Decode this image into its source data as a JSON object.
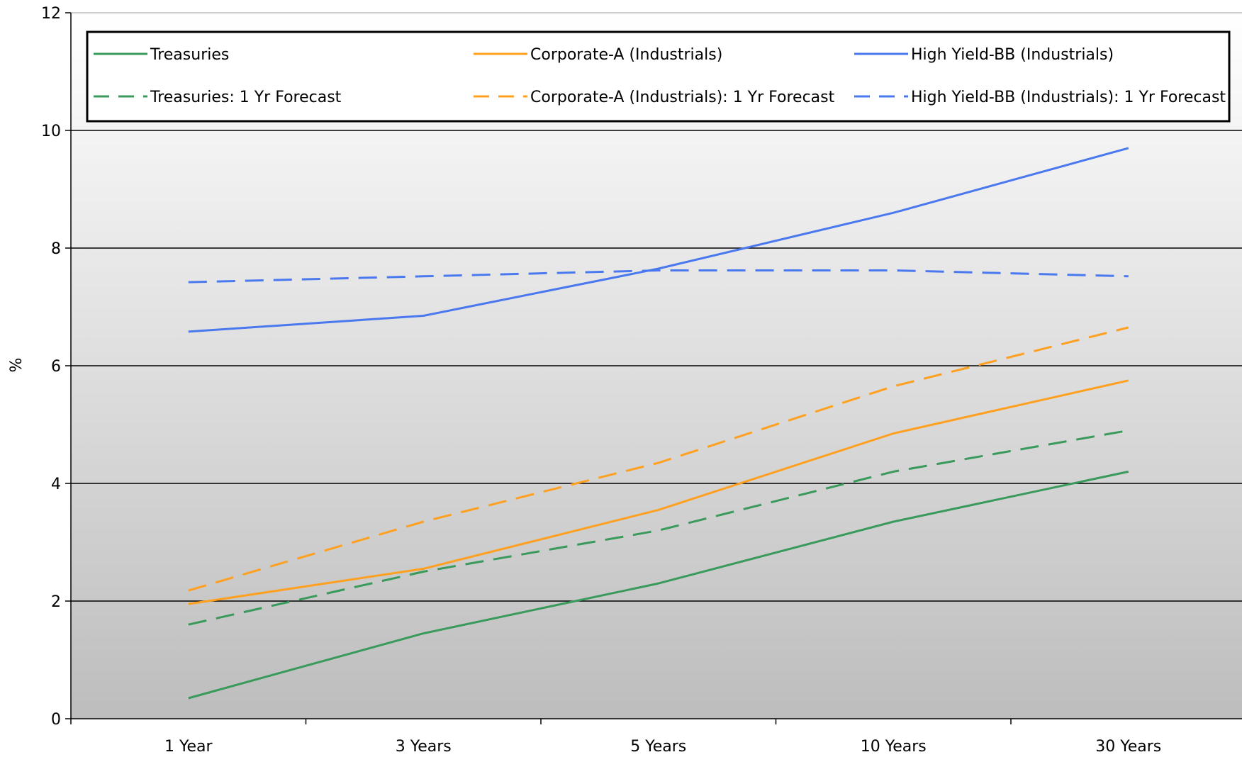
{
  "chart_data": {
    "type": "line",
    "title": "",
    "xlabel": "",
    "ylabel": "%",
    "categories": [
      "1 Year",
      "3 Years",
      "5 Years",
      "10 Years",
      "30 Years"
    ],
    "ylim": [
      0,
      12
    ],
    "yticks": [
      0,
      2,
      4,
      6,
      8,
      10,
      12
    ],
    "grid": true,
    "legend": "top",
    "series": [
      {
        "name": "Treasuries",
        "values": [
          0.35,
          1.45,
          2.3,
          3.35,
          4.2
        ],
        "color": "#3a9a5c",
        "dashed": false
      },
      {
        "name": "Corporate-A (Industrials)",
        "values": [
          1.95,
          2.55,
          3.55,
          4.85,
          5.75
        ],
        "color": "#ffa020",
        "dashed": false
      },
      {
        "name": "High Yield-BB (Industrials)",
        "values": [
          6.58,
          6.85,
          7.65,
          8.6,
          9.7
        ],
        "color": "#4a78ee",
        "dashed": false
      },
      {
        "name": "Treasuries: 1 Yr Forecast",
        "values": [
          1.6,
          2.5,
          3.2,
          4.2,
          4.9
        ],
        "color": "#3a9a5c",
        "dashed": true
      },
      {
        "name": "Corporate-A (Industrials): 1 Yr Forecast",
        "values": [
          2.18,
          3.35,
          4.35,
          5.65,
          6.65
        ],
        "color": "#ffa020",
        "dashed": true
      },
      {
        "name": "High Yield-BB (Industrials): 1 Yr Forecast",
        "values": [
          7.42,
          7.52,
          7.62,
          7.62,
          7.52
        ],
        "color": "#4a78ee",
        "dashed": true
      }
    ]
  }
}
